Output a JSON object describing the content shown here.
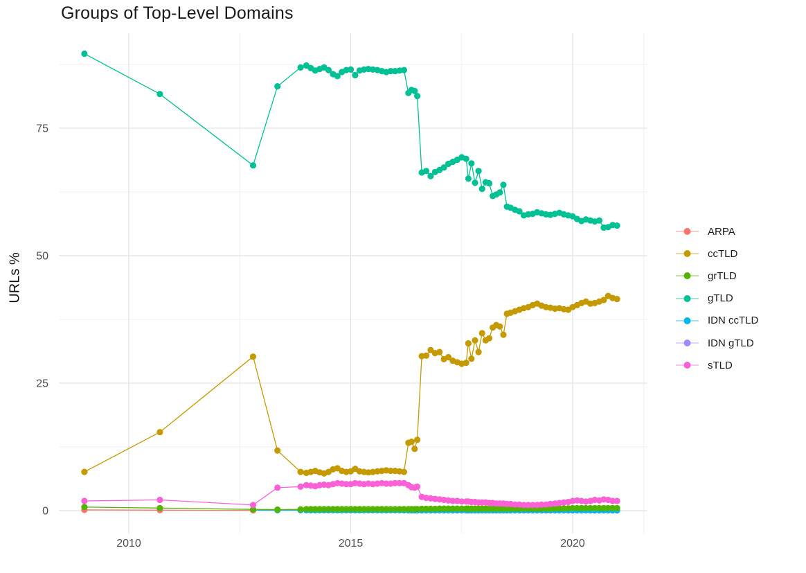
{
  "page": {
    "background": "#FFFFFF"
  },
  "colors": {
    "grid_major": "#E3E3E3",
    "grid_minor": "#F0F0F0",
    "axis_text": "#4D4D4D",
    "title_text": "#191919"
  },
  "chart_data": {
    "type": "line",
    "title": "Groups of Top-Level Domains",
    "ylabel": "URLs %",
    "xlabel": "",
    "grid": true,
    "legend_position": "right",
    "x_ticks": [
      2010,
      2015,
      2020
    ],
    "y_ticks": [
      0,
      25,
      50,
      75
    ],
    "x_minor": [
      2012.5,
      2017.5,
      2021.6
    ],
    "y_minor": [
      12.5,
      37.5,
      62.5,
      87.5
    ],
    "xlim": [
      2008.4,
      2021.65
    ],
    "ylim": [
      -4.5,
      93.6
    ],
    "point_radius": 4.6,
    "x": [
      2009.0,
      2010.7,
      2012.8,
      2013.35,
      2013.87,
      2014.0,
      2014.1,
      2014.2,
      2014.3,
      2014.4,
      2014.5,
      2014.6,
      2014.7,
      2014.8,
      2014.9,
      2015.0,
      2015.1,
      2015.2,
      2015.3,
      2015.4,
      2015.5,
      2015.6,
      2015.7,
      2015.8,
      2015.9,
      2016.0,
      2016.1,
      2016.2,
      2016.3,
      2016.37,
      2016.44,
      2016.5,
      2016.6,
      2016.7,
      2016.8,
      2016.9,
      2017.0,
      2017.1,
      2017.2,
      2017.3,
      2017.4,
      2017.5,
      2017.6,
      2017.65,
      2017.72,
      2017.8,
      2017.88,
      2017.96,
      2018.04,
      2018.12,
      2018.2,
      2018.28,
      2018.36,
      2018.44,
      2018.52,
      2018.6,
      2018.7,
      2018.8,
      2018.9,
      2019.0,
      2019.1,
      2019.2,
      2019.3,
      2019.4,
      2019.5,
      2019.6,
      2019.7,
      2019.8,
      2019.9,
      2020.0,
      2020.1,
      2020.2,
      2020.3,
      2020.4,
      2020.5,
      2020.6,
      2020.7,
      2020.8,
      2020.9,
      2021.0
    ],
    "draw_order": [
      "IDN gTLD",
      "IDN ccTLD",
      "ARPA",
      "grTLD",
      "ccTLD",
      "gTLD",
      "sTLD"
    ],
    "series": [
      {
        "name": "ARPA",
        "color": "#F8766D",
        "values": [
          0.15,
          0.1,
          0.05,
          null,
          null,
          null,
          null,
          null,
          null,
          null,
          null,
          null,
          null,
          null,
          null,
          null,
          null,
          null,
          null,
          null,
          null,
          null,
          null,
          null,
          null,
          null,
          null,
          null,
          null,
          null,
          null,
          null,
          null,
          null,
          null,
          null,
          null,
          null,
          null,
          null,
          null,
          null,
          null,
          null,
          null,
          null,
          null,
          null,
          null,
          null,
          null,
          null,
          null,
          null,
          null,
          null,
          null,
          null,
          null,
          null,
          null,
          null,
          null,
          null,
          null,
          null,
          null,
          null,
          null,
          null,
          null,
          null,
          null,
          null,
          null,
          null,
          null,
          null,
          null,
          null
        ]
      },
      {
        "name": "ccTLD",
        "color": "#C49A00",
        "values": [
          7.6,
          15.4,
          30.2,
          11.8,
          7.6,
          7.4,
          7.6,
          7.8,
          7.5,
          7.3,
          7.6,
          8.1,
          8.3,
          7.8,
          7.6,
          7.7,
          8.2,
          7.7,
          7.6,
          7.5,
          7.6,
          7.7,
          7.8,
          7.9,
          7.8,
          7.8,
          7.7,
          7.6,
          13.3,
          13.5,
          12.1,
          13.9,
          30.3,
          30.4,
          31.5,
          30.9,
          31.1,
          29.7,
          30.1,
          29.4,
          29.1,
          28.8,
          29.0,
          32.8,
          29.8,
          33.4,
          31.1,
          34.8,
          33.4,
          33.8,
          35.9,
          36.4,
          36.1,
          34.5,
          38.6,
          38.8,
          39.1,
          39.4,
          39.7,
          39.9,
          40.3,
          40.6,
          40.2,
          39.9,
          39.8,
          39.6,
          39.7,
          39.5,
          39.4,
          39.9,
          40.3,
          40.7,
          41.0,
          40.6,
          40.7,
          41.0,
          41.3,
          42.1,
          41.7,
          41.5
        ]
      },
      {
        "name": "grTLD",
        "color": "#53B400",
        "values": [
          0.7,
          0.5,
          0.25,
          0.2,
          0.25,
          0.3,
          0.3,
          0.3,
          0.3,
          0.3,
          0.3,
          0.3,
          0.3,
          0.3,
          0.3,
          0.3,
          0.3,
          0.3,
          0.3,
          0.3,
          0.3,
          0.3,
          0.3,
          0.3,
          0.3,
          0.3,
          0.3,
          0.3,
          0.3,
          0.3,
          0.3,
          0.3,
          0.35,
          0.35,
          0.35,
          0.35,
          0.4,
          0.4,
          0.4,
          0.4,
          0.4,
          0.4,
          0.4,
          0.4,
          0.4,
          0.4,
          0.4,
          0.4,
          0.4,
          0.4,
          0.4,
          0.4,
          0.4,
          0.4,
          0.4,
          0.4,
          0.4,
          0.4,
          0.4,
          0.4,
          0.4,
          0.4,
          0.4,
          0.4,
          0.4,
          0.45,
          0.45,
          0.45,
          0.45,
          0.5,
          0.5,
          0.5,
          0.5,
          0.5,
          0.5,
          0.5,
          0.5,
          0.5,
          0.5,
          0.5
        ]
      },
      {
        "name": "gTLD",
        "color": "#00C094",
        "values": [
          89.6,
          81.7,
          67.7,
          83.2,
          86.9,
          87.3,
          86.8,
          86.3,
          86.6,
          86.9,
          86.4,
          85.6,
          85.2,
          86.0,
          86.4,
          86.5,
          85.4,
          86.3,
          86.5,
          86.6,
          86.5,
          86.4,
          86.2,
          86.0,
          86.2,
          86.2,
          86.3,
          86.4,
          81.9,
          82.5,
          82.3,
          81.3,
          66.3,
          66.6,
          65.6,
          66.4,
          66.8,
          67.3,
          68.0,
          68.4,
          68.8,
          69.3,
          69.0,
          65.1,
          68.1,
          64.3,
          66.6,
          63.1,
          64.4,
          64.2,
          61.7,
          62.0,
          62.4,
          63.9,
          59.6,
          59.4,
          59.0,
          58.7,
          57.9,
          58.1,
          58.2,
          58.5,
          58.3,
          58.1,
          58.0,
          58.2,
          58.4,
          58.1,
          57.9,
          57.7,
          57.2,
          56.8,
          57.1,
          56.9,
          56.7,
          56.9,
          55.5,
          55.6,
          56.0,
          55.9
        ]
      },
      {
        "name": "IDN ccTLD",
        "color": "#00B6EB",
        "values": [
          null,
          null,
          0.1,
          0.08,
          0.08,
          0.08,
          0.08,
          0.08,
          0.08,
          0.08,
          0.08,
          0.08,
          0.08,
          0.08,
          0.08,
          0.08,
          0.08,
          0.08,
          0.08,
          0.08,
          0.08,
          0.08,
          0.08,
          0.08,
          0.08,
          0.08,
          0.08,
          0.08,
          0.08,
          0.08,
          0.08,
          0.08,
          0.08,
          0.08,
          0.08,
          0.08,
          0.08,
          0.08,
          0.08,
          0.08,
          0.08,
          0.08,
          0.08,
          0.08,
          0.08,
          0.08,
          0.08,
          0.08,
          0.08,
          0.08,
          0.08,
          0.08,
          0.08,
          0.08,
          0.08,
          0.08,
          0.08,
          0.08,
          0.08,
          0.08,
          0.08,
          0.08,
          0.08,
          0.08,
          0.08,
          0.08,
          0.08,
          0.08,
          0.08,
          0.08,
          0.08,
          0.08,
          0.08,
          0.08,
          0.08,
          0.08,
          0.08,
          0.08,
          0.08,
          0.08
        ]
      },
      {
        "name": "IDN gTLD",
        "color": "#A58AFF",
        "values": [
          null,
          null,
          null,
          null,
          null,
          null,
          null,
          null,
          null,
          null,
          null,
          null,
          null,
          null,
          null,
          null,
          null,
          null,
          null,
          null,
          null,
          null,
          null,
          null,
          null,
          null,
          null,
          null,
          0.05,
          0.05,
          0.05,
          0.05,
          0.05,
          0.05,
          0.05,
          0.05,
          0.05,
          0.05,
          0.05,
          0.05,
          0.05,
          0.05,
          0.05,
          0.05,
          0.05,
          0.05,
          0.05,
          0.05,
          0.05,
          0.05,
          0.05,
          0.05,
          0.05,
          0.05,
          0.05,
          0.05,
          0.05,
          0.05,
          0.05,
          0.05,
          0.05,
          0.05,
          0.05,
          0.05,
          0.05,
          0.05,
          0.05,
          0.05,
          0.05,
          0.05,
          0.05,
          0.05,
          0.05,
          0.05,
          0.05,
          0.05,
          0.05,
          0.05,
          0.05,
          0.05
        ]
      },
      {
        "name": "sTLD",
        "color": "#FB61D7",
        "values": [
          1.9,
          2.1,
          1.1,
          4.5,
          4.7,
          5.0,
          4.9,
          4.8,
          5.0,
          5.1,
          5.0,
          5.2,
          5.4,
          5.3,
          5.2,
          5.2,
          5.4,
          5.3,
          5.2,
          5.3,
          5.2,
          5.3,
          5.4,
          5.3,
          5.3,
          5.4,
          5.4,
          5.4,
          5.0,
          4.6,
          4.5,
          4.7,
          2.7,
          2.5,
          2.4,
          2.3,
          2.2,
          2.1,
          2.0,
          1.9,
          1.9,
          1.8,
          1.8,
          1.8,
          1.7,
          1.7,
          1.6,
          1.6,
          1.6,
          1.5,
          1.5,
          1.4,
          1.4,
          1.4,
          1.3,
          1.3,
          1.2,
          1.2,
          1.1,
          1.1,
          1.1,
          1.1,
          1.2,
          1.2,
          1.3,
          1.4,
          1.5,
          1.6,
          1.7,
          1.9,
          2.0,
          1.9,
          1.8,
          1.9,
          2.1,
          2.0,
          2.2,
          2.1,
          1.9,
          1.9
        ]
      }
    ]
  }
}
